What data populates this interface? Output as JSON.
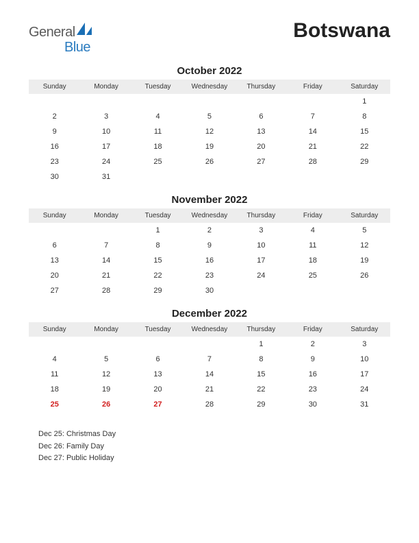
{
  "logo": {
    "word1": "General",
    "word2": "Blue",
    "color1": "#5a5a5a",
    "color2": "#2a7bbf",
    "mark_color": "#1b6fb5"
  },
  "country": "Botswana",
  "day_headers": [
    "Sunday",
    "Monday",
    "Tuesday",
    "Wednesday",
    "Thursday",
    "Friday",
    "Saturday"
  ],
  "months": [
    {
      "title": "October 2022",
      "weeks": [
        [
          "",
          "",
          "",
          "",
          "",
          "",
          "1"
        ],
        [
          "2",
          "3",
          "4",
          "5",
          "6",
          "7",
          "8"
        ],
        [
          "9",
          "10",
          "11",
          "12",
          "13",
          "14",
          "15"
        ],
        [
          "16",
          "17",
          "18",
          "19",
          "20",
          "21",
          "22"
        ],
        [
          "23",
          "24",
          "25",
          "26",
          "27",
          "28",
          "29"
        ],
        [
          "30",
          "31",
          "",
          "",
          "",
          "",
          ""
        ]
      ],
      "holidays": []
    },
    {
      "title": "November 2022",
      "weeks": [
        [
          "",
          "",
          "1",
          "2",
          "3",
          "4",
          "5"
        ],
        [
          "6",
          "7",
          "8",
          "9",
          "10",
          "11",
          "12"
        ],
        [
          "13",
          "14",
          "15",
          "16",
          "17",
          "18",
          "19"
        ],
        [
          "20",
          "21",
          "22",
          "23",
          "24",
          "25",
          "26"
        ],
        [
          "27",
          "28",
          "29",
          "30",
          "",
          "",
          ""
        ]
      ],
      "holidays": []
    },
    {
      "title": "December 2022",
      "weeks": [
        [
          "",
          "",
          "",
          "",
          "1",
          "2",
          "3"
        ],
        [
          "4",
          "5",
          "6",
          "7",
          "8",
          "9",
          "10"
        ],
        [
          "11",
          "12",
          "13",
          "14",
          "15",
          "16",
          "17"
        ],
        [
          "18",
          "19",
          "20",
          "21",
          "22",
          "23",
          "24"
        ],
        [
          "25",
          "26",
          "27",
          "28",
          "29",
          "30",
          "31"
        ]
      ],
      "holidays": [
        "25",
        "26",
        "27"
      ]
    }
  ],
  "holiday_list": [
    "Dec 25: Christmas Day",
    "Dec 26: Family Day",
    "Dec 27: Public Holiday"
  ],
  "styling": {
    "page_bg": "#ffffff",
    "header_bg": "#ededed",
    "text_color": "#333333",
    "holiday_color": "#d22020",
    "title_fontsize": 15,
    "header_fontsize": 10,
    "cell_fontsize": 11,
    "country_fontsize": 30
  }
}
